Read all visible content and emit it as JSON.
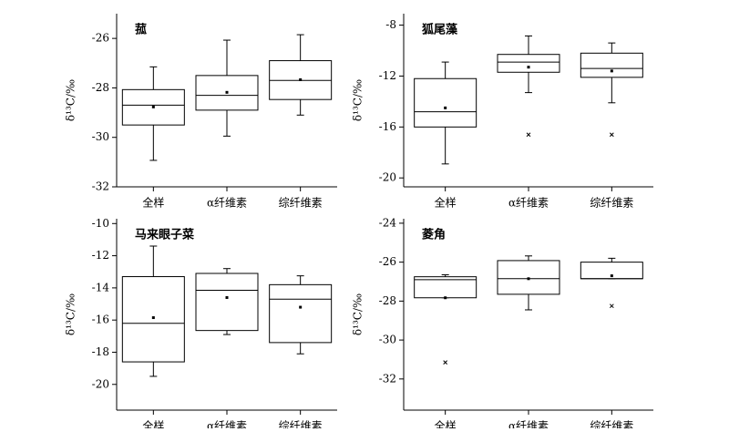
{
  "chart_data": [
    {
      "type": "box",
      "title": "菰",
      "ylabel": "δ¹³C/‰",
      "categories": [
        "全样",
        "α纤维素",
        "综纤维素"
      ],
      "ylim": [
        -32,
        -25
      ],
      "yticks": [
        -32,
        -30,
        -28,
        -26
      ],
      "boxes": [
        {
          "whisker_low": -30.93,
          "q1": -29.5,
          "median": -28.7,
          "q3": -28.07,
          "whisker_high": -27.15,
          "mean": -28.77,
          "outliers": []
        },
        {
          "whisker_low": -29.95,
          "q1": -28.9,
          "median": -28.3,
          "q3": -27.5,
          "whisker_high": -26.07,
          "mean": -28.18,
          "outliers": []
        },
        {
          "whisker_low": -29.1,
          "q1": -28.47,
          "median": -27.7,
          "q3": -26.9,
          "whisker_high": -25.85,
          "mean": -27.67,
          "outliers": []
        }
      ]
    },
    {
      "type": "box",
      "title": "狐尾藻",
      "ylabel": "δ¹³C/‰",
      "categories": [
        "全样",
        "α纤维素",
        "综纤维素"
      ],
      "ylim": [
        -20.7,
        -7.1
      ],
      "yticks": [
        -20,
        -16,
        -12,
        -8
      ],
      "boxes": [
        {
          "whisker_low": -18.9,
          "q1": -16.0,
          "median": -14.8,
          "q3": -12.2,
          "whisker_high": -10.9,
          "mean": -14.5,
          "outliers": []
        },
        {
          "whisker_low": -13.3,
          "q1": -11.7,
          "median": -10.9,
          "q3": -10.3,
          "whisker_high": -8.85,
          "mean": -11.3,
          "outliers": [
            -16.6
          ]
        },
        {
          "whisker_low": -14.1,
          "q1": -12.1,
          "median": -11.4,
          "q3": -10.2,
          "whisker_high": -9.4,
          "mean": -11.6,
          "outliers": [
            -16.6
          ]
        }
      ]
    },
    {
      "type": "box",
      "title": "马来眼子菜",
      "ylabel": "δ¹³C/‰",
      "categories": [
        "全样",
        "α纤维素",
        "综纤维素"
      ],
      "ylim": [
        -21.6,
        -9.7
      ],
      "yticks": [
        -20,
        -18,
        -16,
        -14,
        -12,
        -10
      ],
      "boxes": [
        {
          "whisker_low": -19.5,
          "q1": -18.6,
          "median": -16.2,
          "q3": -13.3,
          "whisker_high": -11.4,
          "mean": -15.85,
          "outliers": []
        },
        {
          "whisker_low": -16.9,
          "q1": -16.65,
          "median": -14.15,
          "q3": -13.1,
          "whisker_high": -12.8,
          "mean": -14.6,
          "outliers": []
        },
        {
          "whisker_low": -18.1,
          "q1": -17.4,
          "median": -14.7,
          "q3": -13.8,
          "whisker_high": -13.25,
          "mean": -15.2,
          "outliers": []
        }
      ]
    },
    {
      "type": "box",
      "title": "菱角",
      "ylabel": "δ¹³C/‰",
      "categories": [
        "全样",
        "α纤维素",
        "综纤维素"
      ],
      "ylim": [
        -33.6,
        -23.77
      ],
      "yticks": [
        -32,
        -30,
        -28,
        -26,
        -24
      ],
      "boxes": [
        {
          "whisker_low": -27.83,
          "q1": -27.83,
          "median": -26.9,
          "q3": -26.75,
          "whisker_high": -26.65,
          "mean": -27.83,
          "outliers": [
            -31.15
          ]
        },
        {
          "whisker_low": -28.45,
          "q1": -27.65,
          "median": -26.85,
          "q3": -25.92,
          "whisker_high": -25.68,
          "mean": -26.85,
          "outliers": []
        },
        {
          "whisker_low": -26.85,
          "q1": -26.85,
          "median": -26.85,
          "q3": -26.0,
          "whisker_high": -25.8,
          "mean": -26.7,
          "outliers": [
            -28.25
          ]
        }
      ]
    }
  ]
}
